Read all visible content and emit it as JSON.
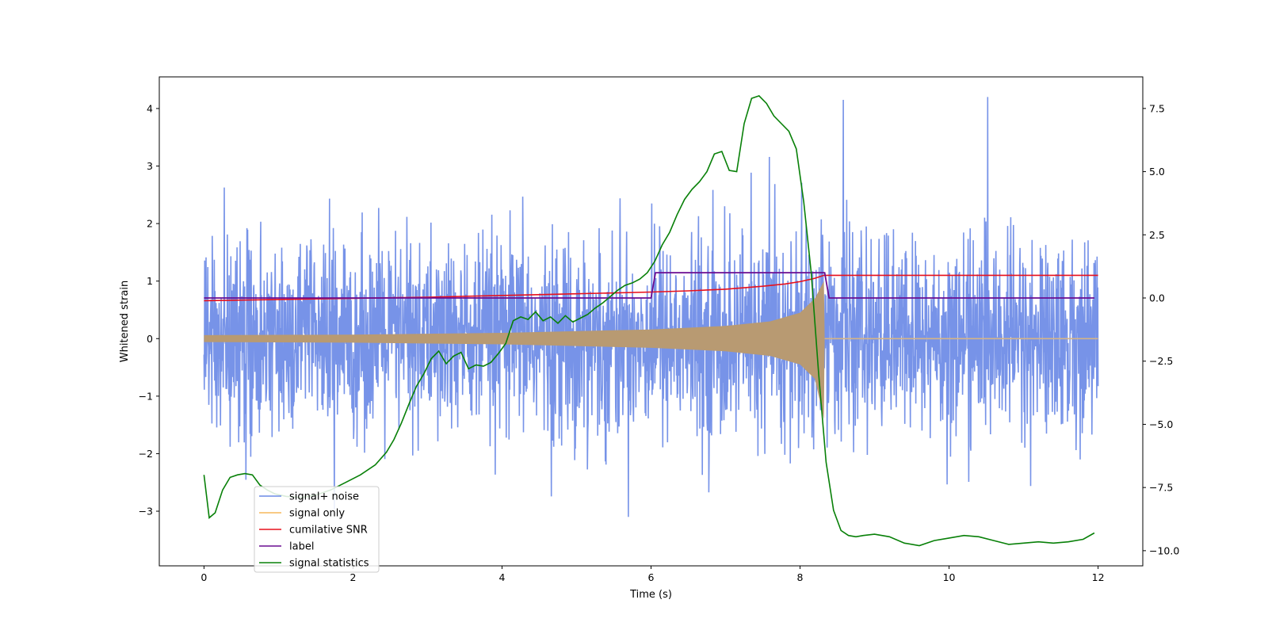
{
  "chart_data": {
    "type": "line",
    "title": "",
    "xlabel": "Time (s)",
    "ylabel": "Whitened strain",
    "y2label": "",
    "xlim": [
      -0.6,
      12.6
    ],
    "ylim": [
      -3.95,
      4.55
    ],
    "y2lim": [
      -10.6,
      8.75
    ],
    "xticks": [
      0,
      2,
      4,
      6,
      8,
      10,
      12
    ],
    "yticks": [
      -3,
      -2,
      -1,
      0,
      1,
      2,
      3,
      4
    ],
    "y2ticks": [
      -10.0,
      -7.5,
      -5.0,
      -2.5,
      0.0,
      2.5,
      5.0,
      7.5
    ],
    "legend_position": "lower-left",
    "merger_time": 8.32,
    "series": [
      {
        "name": "signal+ noise",
        "color": "#6b8ae6",
        "axis": "left",
        "description": "whitened strain, 0-12 s, roughly Gaussian noise (std ~0.9) with largest spike ~4.15 near t=8.58",
        "x_range": [
          0,
          12
        ],
        "peak": {
          "x": 8.58,
          "y": 4.15
        },
        "min": {
          "x": 1.0,
          "y": -3.15
        }
      },
      {
        "name": "signal only",
        "color": "#f5b85c",
        "axis": "left",
        "description": "chirp, amplitude growing from ~0.06 at t=0 to ~1.0 at merger t=8.32, then flat at 0",
        "x_range": [
          0,
          12
        ],
        "amplitude_points": [
          [
            0,
            0.06
          ],
          [
            2,
            0.07
          ],
          [
            4,
            0.1
          ],
          [
            6,
            0.16
          ],
          [
            7,
            0.22
          ],
          [
            7.6,
            0.3
          ],
          [
            8.0,
            0.45
          ],
          [
            8.2,
            0.7
          ],
          [
            8.32,
            1.0
          ],
          [
            8.33,
            0.0
          ],
          [
            12,
            0.0
          ]
        ]
      },
      {
        "name": "cumilative SNR",
        "color": "#e8101c",
        "axis": "left",
        "x": [
          0,
          1,
          2,
          3,
          4,
          5,
          6,
          6.5,
          7,
          7.5,
          7.8,
          8.0,
          8.2,
          8.32,
          12
        ],
        "values": [
          0.66,
          0.68,
          0.7,
          0.72,
          0.75,
          0.78,
          0.81,
          0.83,
          0.86,
          0.91,
          0.95,
          0.99,
          1.05,
          1.1,
          1.1
        ]
      },
      {
        "name": "label",
        "color": "#6a0d91",
        "axis": "right",
        "x": [
          0,
          6.0,
          6.06,
          8.33,
          8.39,
          11.95
        ],
        "values": [
          0,
          0,
          1,
          1,
          0,
          0
        ]
      },
      {
        "name": "signal statistics",
        "color": "#088008",
        "axis": "right",
        "x": [
          0,
          0.07,
          0.15,
          0.25,
          0.35,
          0.45,
          0.55,
          0.65,
          0.75,
          0.85,
          0.95,
          1.1,
          1.3,
          1.5,
          1.7,
          1.9,
          2.1,
          2.3,
          2.45,
          2.55,
          2.65,
          2.75,
          2.85,
          2.95,
          3.05,
          3.15,
          3.25,
          3.35,
          3.45,
          3.55,
          3.65,
          3.75,
          3.85,
          3.95,
          4.05,
          4.15,
          4.25,
          4.35,
          4.45,
          4.55,
          4.65,
          4.75,
          4.85,
          4.95,
          5.05,
          5.15,
          5.25,
          5.35,
          5.45,
          5.55,
          5.65,
          5.75,
          5.85,
          5.95,
          6.05,
          6.15,
          6.25,
          6.35,
          6.45,
          6.55,
          6.65,
          6.75,
          6.85,
          6.95,
          7.05,
          7.15,
          7.25,
          7.35,
          7.45,
          7.55,
          7.65,
          7.75,
          7.85,
          7.95,
          8.05,
          8.15,
          8.25,
          8.35,
          8.45,
          8.55,
          8.65,
          8.75,
          8.85,
          9.0,
          9.2,
          9.4,
          9.6,
          9.8,
          10.0,
          10.2,
          10.4,
          10.6,
          10.8,
          11.0,
          11.2,
          11.4,
          11.6,
          11.8,
          11.95
        ],
        "values": [
          -7.0,
          -8.7,
          -8.5,
          -7.6,
          -7.1,
          -7.0,
          -6.95,
          -7.0,
          -7.4,
          -7.6,
          -7.75,
          -7.85,
          -7.9,
          -7.8,
          -7.6,
          -7.3,
          -7.0,
          -6.6,
          -6.1,
          -5.6,
          -4.95,
          -4.2,
          -3.5,
          -3.0,
          -2.4,
          -2.1,
          -2.6,
          -2.3,
          -2.15,
          -2.8,
          -2.65,
          -2.7,
          -2.55,
          -2.2,
          -1.8,
          -0.9,
          -0.75,
          -0.85,
          -0.55,
          -0.9,
          -0.75,
          -1.0,
          -0.7,
          -0.95,
          -0.8,
          -0.65,
          -0.4,
          -0.2,
          0.05,
          0.3,
          0.5,
          0.6,
          0.75,
          1.0,
          1.45,
          2.1,
          2.6,
          3.3,
          3.9,
          4.3,
          4.6,
          5.0,
          5.7,
          5.8,
          5.05,
          5.0,
          6.9,
          7.9,
          8.0,
          7.7,
          7.2,
          6.9,
          6.6,
          5.9,
          3.8,
          1.0,
          -3.0,
          -6.5,
          -8.4,
          -9.2,
          -9.4,
          -9.45,
          -9.4,
          -9.35,
          -9.45,
          -9.7,
          -9.8,
          -9.6,
          -9.5,
          -9.4,
          -9.45,
          -9.6,
          -9.75,
          -9.7,
          -9.65,
          -9.7,
          -9.65,
          -9.55,
          -9.3
        ]
      }
    ]
  }
}
